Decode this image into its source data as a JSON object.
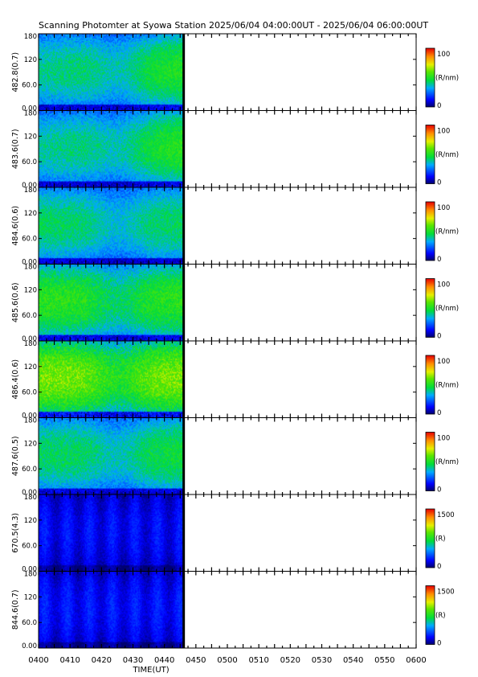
{
  "title": "Scanning Photomter at Syowa Station  2025/06/04 04:00:00UT - 2025/06/04 06:00:00UT",
  "chart_data": {
    "type": "heatmap",
    "xlabel": "TIME(UT)",
    "x_ticks": [
      "0400",
      "0410",
      "0420",
      "0430",
      "0440",
      "0450",
      "0500",
      "0510",
      "0520",
      "0530",
      "0540",
      "0550",
      "0600"
    ],
    "x_range": [
      "04:00",
      "06:00"
    ],
    "data_extent": [
      "04:00",
      "04:46"
    ],
    "y_ticks": [
      "0.00",
      "60.0",
      "120",
      "180"
    ],
    "y_range": [
      0,
      180
    ],
    "panels": [
      {
        "label": "482.8(0.7)",
        "unit": "(R/nm)",
        "cmin": "0",
        "cmax": "100",
        "level": 0.45,
        "bias": 0.25
      },
      {
        "label": "483.6(0.7)",
        "unit": "(R/nm)",
        "cmin": "0",
        "cmax": "100",
        "level": 0.45,
        "bias": 0.3
      },
      {
        "label": "484.6(0.6)",
        "unit": "(R/nm)",
        "cmin": "0",
        "cmax": "100",
        "level": 0.43,
        "bias": 0.0
      },
      {
        "label": "485.6(0.6)",
        "unit": "(R/nm)",
        "cmin": "0",
        "cmax": "100",
        "level": 0.52,
        "bias": 0.0
      },
      {
        "label": "486.4(0.6)",
        "unit": "(R/nm)",
        "cmin": "0",
        "cmax": "100",
        "level": 0.62,
        "bias": 0.0
      },
      {
        "label": "487.6(0.5)",
        "unit": "(R/nm)",
        "cmin": "0",
        "cmax": "100",
        "level": 0.45,
        "bias": 0.1
      },
      {
        "label": "670.5(4.3)",
        "unit": "(R)",
        "cmin": "0",
        "cmax": "1500",
        "level": 0.12,
        "bias": 0.0
      },
      {
        "label": "844.6(0.7)",
        "unit": "(R)",
        "cmin": "0",
        "cmax": "1500",
        "level": 0.13,
        "bias": 0.0
      }
    ]
  }
}
